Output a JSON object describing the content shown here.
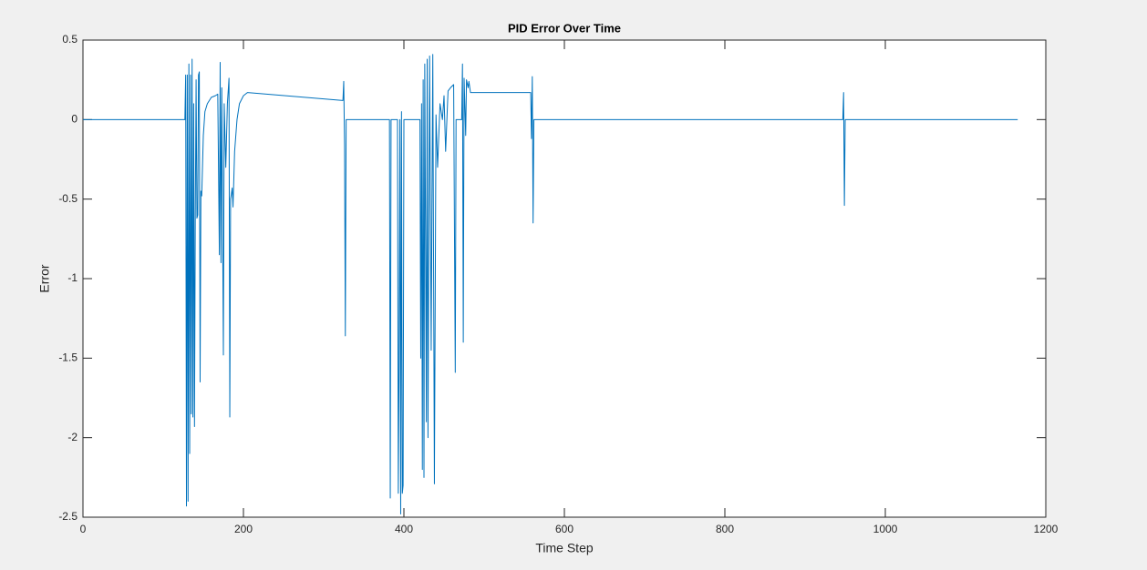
{
  "chart_data": {
    "type": "line",
    "title": "PID Error Over Time",
    "x_label": "Time Step",
    "y_label": "Error",
    "xlim": [
      0,
      1200
    ],
    "ylim": [
      -2.5,
      0.5
    ],
    "xticks": [
      0,
      200,
      400,
      600,
      800,
      1000,
      1200
    ],
    "yticks": [
      -2.5,
      -2,
      -1.5,
      -1,
      -0.5,
      0,
      0.5
    ],
    "grid": false,
    "series": [
      {
        "name": "Error",
        "color": "#0072bd",
        "x": [
          0,
          127,
          128,
          129,
          130,
          131,
          132,
          133,
          134,
          135,
          136,
          137,
          138,
          139,
          140,
          141,
          142,
          143,
          144,
          145,
          146,
          147,
          148,
          150,
          152,
          155,
          160,
          165,
          168,
          170,
          171,
          172,
          173,
          175,
          176,
          178,
          180,
          182,
          183,
          184,
          186,
          187,
          189,
          192,
          195,
          200,
          205,
          324,
          325,
          326,
          327,
          328,
          382,
          383,
          384,
          392,
          393,
          394,
          395,
          396,
          397,
          398,
          399,
          400,
          420,
          421,
          422,
          423,
          424,
          425,
          426,
          428,
          429,
          430,
          432,
          434,
          436,
          438,
          440,
          442,
          445,
          448,
          450,
          452,
          455,
          458,
          462,
          464,
          465,
          472,
          473,
          474,
          475,
          477,
          478,
          480,
          481,
          483,
          558,
          559,
          560,
          561,
          562,
          947,
          948,
          949,
          950,
          1165
        ],
        "values": [
          0,
          0,
          0.28,
          -2.43,
          0.28,
          -2.4,
          0.35,
          -2.1,
          0.28,
          -1.85,
          0.38,
          -1.87,
          0.1,
          -1.93,
          -0.6,
          0.25,
          -0.62,
          -0.6,
          0.28,
          0.3,
          -1.65,
          -0.45,
          -0.48,
          -0.1,
          0.05,
          0.1,
          0.14,
          0.15,
          0.16,
          -0.85,
          0.36,
          -0.9,
          0.2,
          -1.48,
          0.1,
          -0.3,
          0.1,
          0.26,
          -1.87,
          -0.5,
          -0.43,
          -0.55,
          -0.2,
          0,
          0.1,
          0.15,
          0.17,
          0.12,
          0.24,
          -0.16,
          -1.36,
          0,
          0,
          -2.38,
          0,
          0,
          -2.35,
          -1.5,
          0,
          -2.48,
          0.05,
          -2.35,
          -2.3,
          0,
          0,
          -1.5,
          0.1,
          -2.2,
          0.25,
          -2.25,
          0.35,
          -1.9,
          0.38,
          -2,
          0.4,
          -1.45,
          0.41,
          -2.29,
          0.03,
          -0.3,
          0.1,
          0,
          0.15,
          -0.2,
          0.18,
          0.2,
          0.22,
          -1.59,
          0,
          0,
          0.35,
          -1.4,
          0.26,
          -0.1,
          0.25,
          0.2,
          0.24,
          0.17,
          0.17,
          -0.12,
          0.27,
          -0.65,
          0,
          0,
          0.17,
          -0.54,
          0,
          0
        ]
      }
    ]
  }
}
